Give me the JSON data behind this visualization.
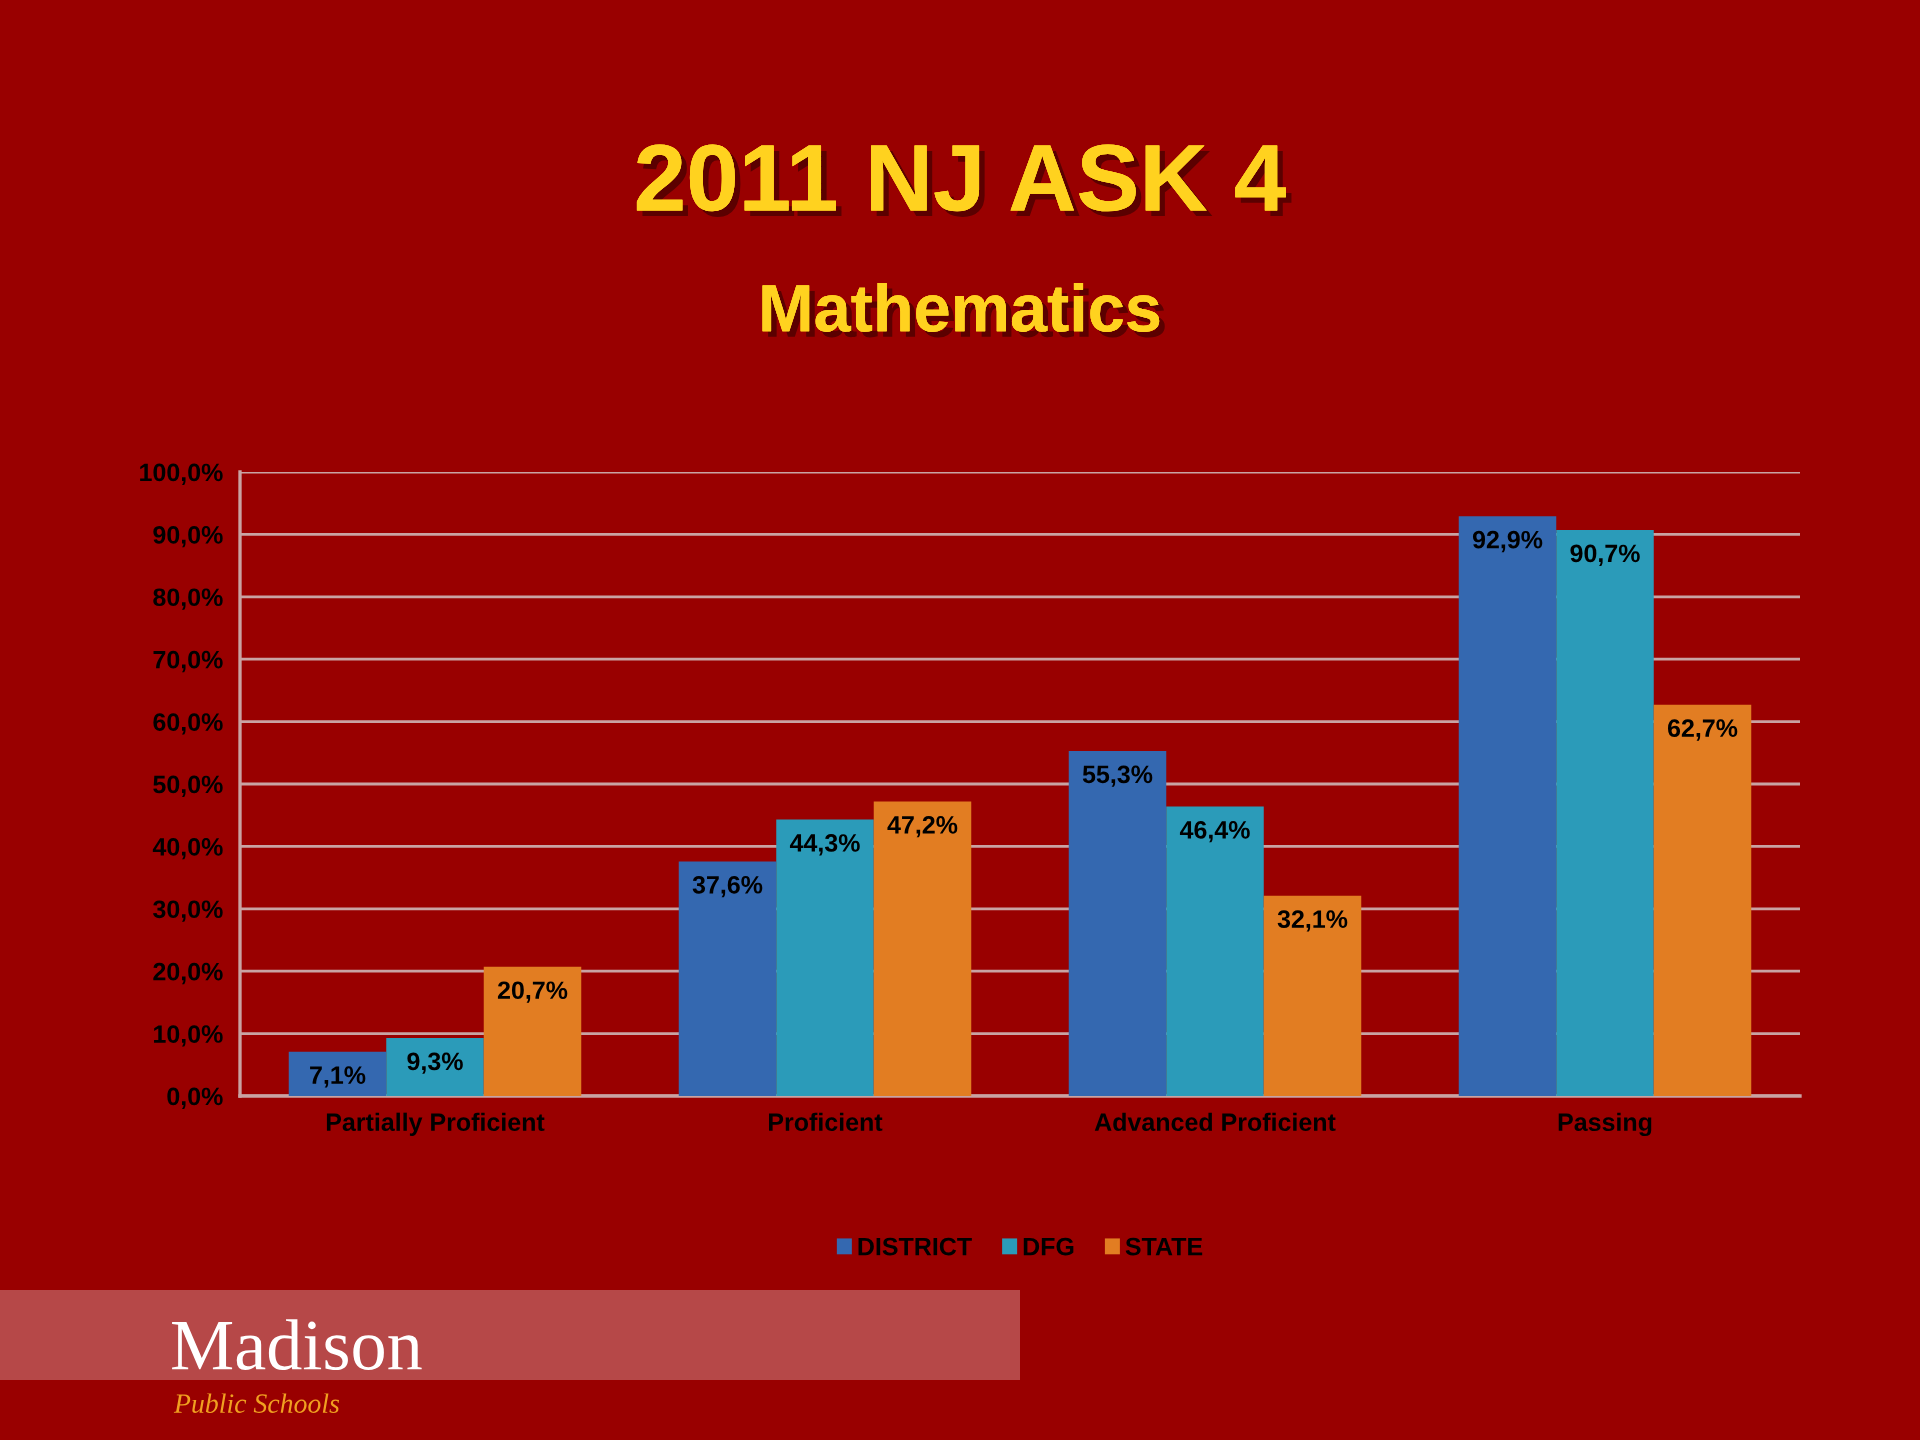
{
  "chart_data": {
    "type": "bar",
    "title": "2011 NJ ASK 4",
    "subtitle": "Mathematics",
    "categories": [
      "Partially Proficient",
      "Proficient",
      "Advanced Proficient",
      "Passing"
    ],
    "series": [
      {
        "name": "DISTRICT",
        "color": "#3468b0",
        "values": [
          7.1,
          37.6,
          55.3,
          92.9
        ],
        "value_labels": [
          "7,1%",
          "37,6%",
          "55,3%",
          "92,9%"
        ]
      },
      {
        "name": "DFG",
        "color": "#2b9bb9",
        "values": [
          9.3,
          44.3,
          46.4,
          90.7
        ],
        "value_labels": [
          "9,3%",
          "44,3%",
          "46,4%",
          "90,7%"
        ]
      },
      {
        "name": "STATE",
        "color": "#e27d22",
        "values": [
          20.7,
          47.2,
          32.1,
          62.7
        ],
        "value_labels": [
          "20,7%",
          "47,2%",
          "32,1%",
          "62,7%"
        ]
      }
    ],
    "ylim": [
      0,
      100
    ],
    "yticks": [
      {
        "value": 0,
        "label": "0,0%"
      },
      {
        "value": 10,
        "label": "10,0%"
      },
      {
        "value": 20,
        "label": "20,0%"
      },
      {
        "value": 30,
        "label": "30,0%"
      },
      {
        "value": 40,
        "label": "40,0%"
      },
      {
        "value": 50,
        "label": "50,0%"
      },
      {
        "value": 60,
        "label": "60,0%"
      },
      {
        "value": 70,
        "label": "70,0%"
      },
      {
        "value": 80,
        "label": "80,0%"
      },
      {
        "value": 90,
        "label": "90,0%"
      },
      {
        "value": 100,
        "label": "100,0%"
      }
    ],
    "grid": "y",
    "legend": "bottom",
    "annotations": [
      "Madison",
      "Public Schools"
    ]
  }
}
